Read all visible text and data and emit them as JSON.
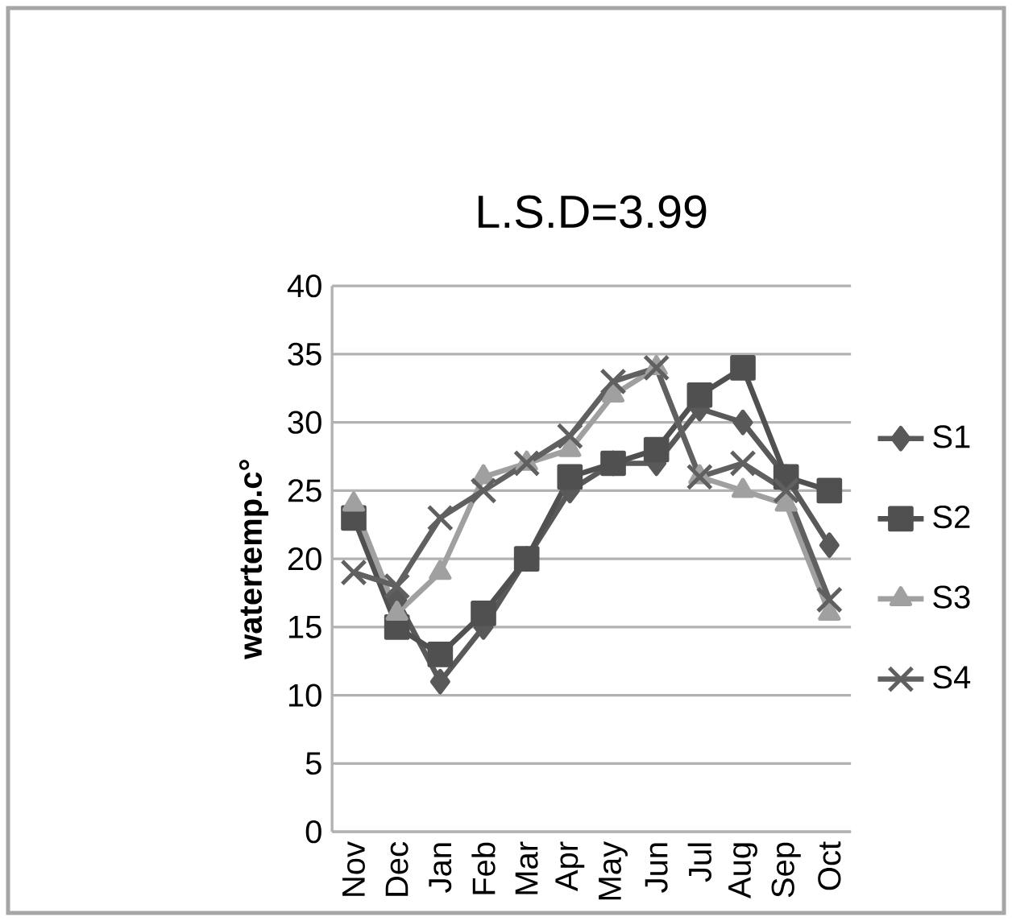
{
  "chart_data": {
    "type": "line",
    "title": "L.S.D=3.99",
    "ylabel": "watertemp.c°",
    "categories": [
      "Nov",
      "Dec",
      "Jan",
      "Feb",
      "Mar",
      "Apr",
      "May",
      "Jun",
      "Jul",
      "Aug",
      "Sep",
      "Oct"
    ],
    "series": [
      {
        "name": "S1",
        "color": "#595959",
        "marker": "diamond",
        "values": [
          null,
          17,
          11,
          15,
          20,
          25,
          27,
          27,
          31,
          30,
          26,
          21
        ]
      },
      {
        "name": "S2",
        "color": "#505050",
        "marker": "square",
        "values": [
          23,
          15,
          13,
          16,
          20,
          26,
          27,
          28,
          32,
          34,
          26,
          25
        ]
      },
      {
        "name": "S3",
        "color": "#a0a0a0",
        "marker": "triangle",
        "values": [
          24,
          16,
          19,
          26,
          27,
          28,
          32,
          34,
          26,
          25,
          24,
          16
        ]
      },
      {
        "name": "S4",
        "color": "#606060",
        "marker": "cross",
        "values": [
          19,
          18,
          23,
          25,
          27,
          29,
          33,
          34,
          26,
          27,
          25,
          17
        ]
      }
    ],
    "ylim": [
      0,
      40
    ],
    "yticks": [
      0,
      5,
      10,
      15,
      20,
      25,
      30,
      35,
      40
    ],
    "grid": "y",
    "legend": "right",
    "line_style": "solid"
  }
}
